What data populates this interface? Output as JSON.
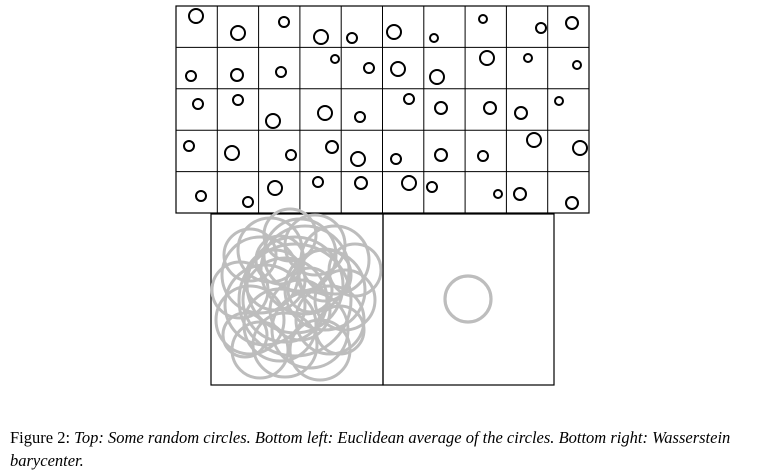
{
  "figure": {
    "top_grid": {
      "rows": 5,
      "cols": 10
    },
    "colors": {
      "circle": "#000000",
      "overlay_circle": "#bdbdbd",
      "frame": "#000000"
    }
  },
  "caption": {
    "label": "Figure 2:",
    "top_head": "Top:",
    "top_text": "Some random circles.",
    "bl_head": "Bottom left:",
    "bl_text": "Euclidean average of the circles.",
    "br_head": "Bottom right:",
    "br_text": "Wasserstein barycenter."
  }
}
